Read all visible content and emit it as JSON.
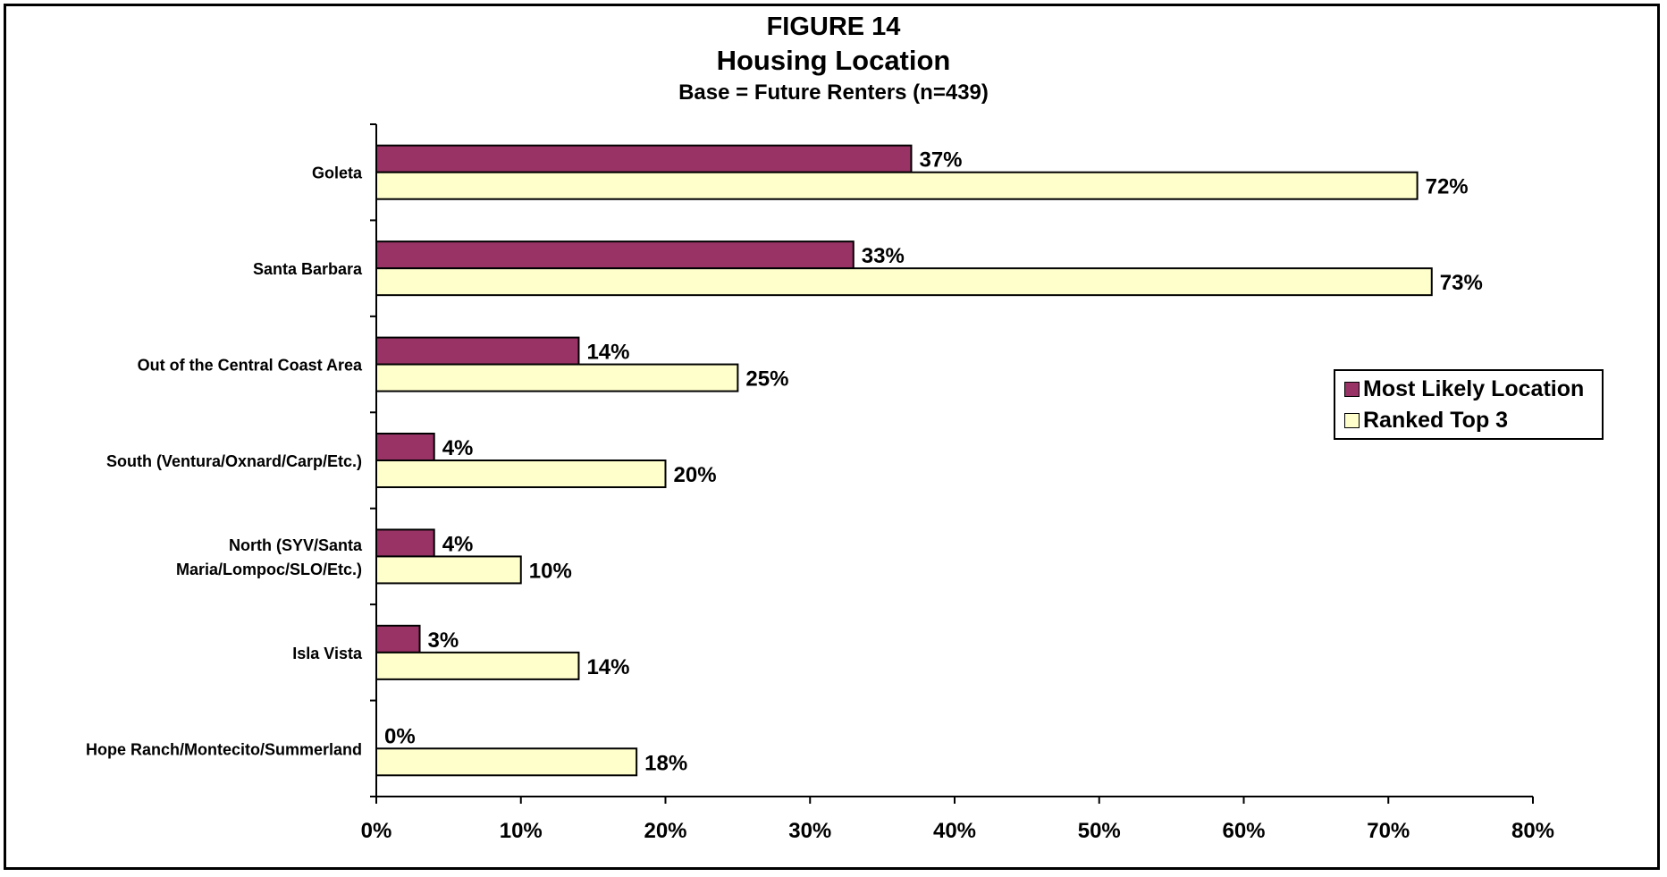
{
  "chart_data": {
    "type": "bar",
    "orientation": "horizontal",
    "title": "FIGURE 14",
    "subtitle": "Housing Location",
    "subtitle2": "Base = Future Renters (n=439)",
    "categories": [
      "Goleta",
      "Santa Barbara",
      "Out of the Central Coast Area",
      "South (Ventura/Oxnard/Carp/Etc.)",
      [
        "North (SYV/Santa",
        "Maria/Lompoc/SLO/Etc.)"
      ],
      "Isla Vista",
      "Hope Ranch/Montecito/Summerland"
    ],
    "series": [
      {
        "name": "Most Likely Location",
        "color": "#993366",
        "values": [
          37,
          33,
          14,
          4,
          4,
          3,
          0
        ]
      },
      {
        "name": "Ranked Top 3",
        "color": "#FFFFCC",
        "values": [
          72,
          73,
          25,
          20,
          10,
          14,
          18
        ]
      }
    ],
    "xlim": [
      0,
      80
    ],
    "xticks": [
      0,
      10,
      20,
      30,
      40,
      50,
      60,
      70,
      80
    ],
    "tick_suffix": "%",
    "value_suffix": "%",
    "grid": false,
    "legend_position": "right"
  }
}
